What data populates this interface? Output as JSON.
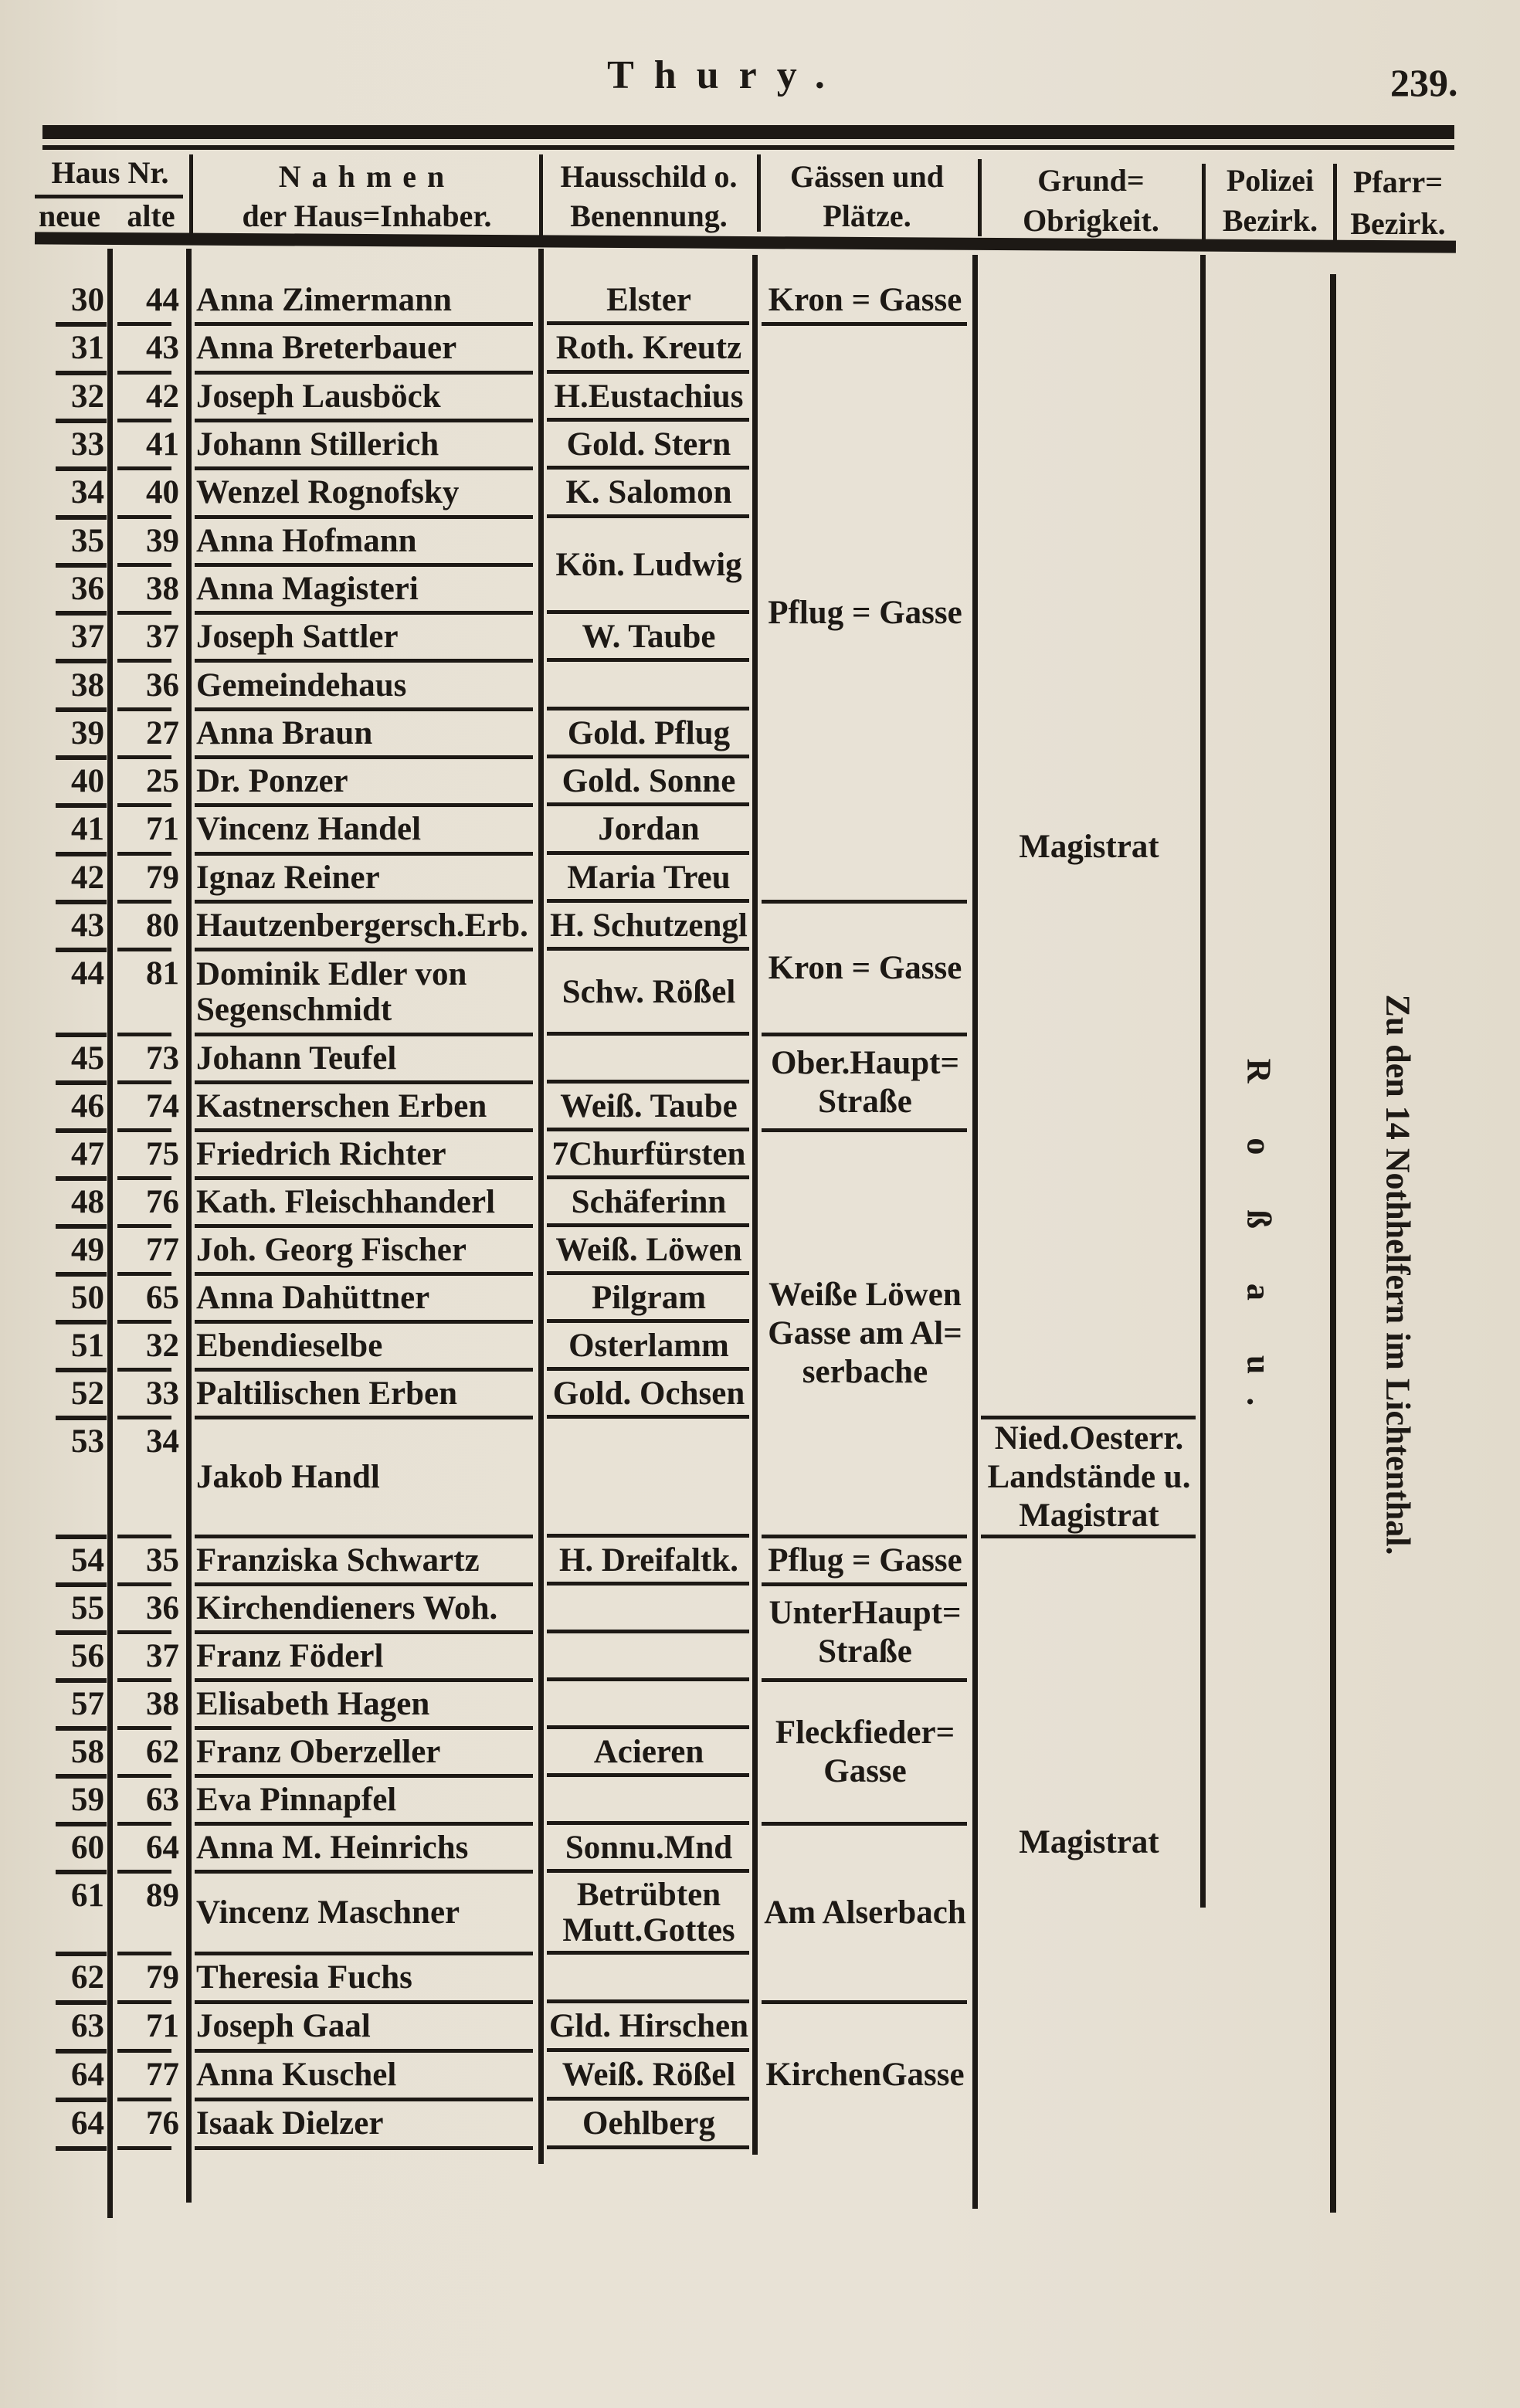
{
  "header": {
    "title": "Thury.",
    "page_number": "239."
  },
  "columns": {
    "haus_nr": "Haus Nr.",
    "neue": "neue",
    "alte": "alte",
    "nahmen": "Nahmen",
    "nahmen_sub": "der Haus=Inhaber.",
    "hausschild": "Hausschild o.",
    "hausschild_sub": "Benennung.",
    "gassen": "Gässen und",
    "gassen_sub": "Plätze.",
    "grund": "Grund=",
    "grund_sub": "Obrigkeit.",
    "polizei": "Polizei",
    "polizei_sub": "Bezirk.",
    "pfarr": "Pfarr=",
    "pfarr_sub": "Bezirk."
  },
  "rows": [
    {
      "neue": "30",
      "alte": "44",
      "name": "Anna Zimermann",
      "sign": "Elster"
    },
    {
      "neue": "31",
      "alte": "43",
      "name": "Anna Breterbauer",
      "sign": "Roth. Kreutz"
    },
    {
      "neue": "32",
      "alte": "42",
      "name": "Joseph Lausböck",
      "sign": "H.Eustachius"
    },
    {
      "neue": "33",
      "alte": "41",
      "name": "Johann Stillerich",
      "sign": "Gold. Stern"
    },
    {
      "neue": "34",
      "alte": "40",
      "name": "Wenzel Rognofsky",
      "sign": "K. Salomon"
    },
    {
      "neue": "35",
      "alte": "39",
      "name": "Anna Hofmann",
      "sign": "Kön. Ludwig"
    },
    {
      "neue": "36",
      "alte": "38",
      "name": "Anna Magisteri",
      "sign": ""
    },
    {
      "neue": "37",
      "alte": "37",
      "name": "Joseph Sattler",
      "sign": "W. Taube"
    },
    {
      "neue": "38",
      "alte": "36",
      "name": "Gemeindehaus",
      "sign": ""
    },
    {
      "neue": "39",
      "alte": "27",
      "name": "Anna Braun",
      "sign": "Gold. Pflug"
    },
    {
      "neue": "40",
      "alte": "25",
      "name": "Dr. Ponzer",
      "sign": "Gold. Sonne"
    },
    {
      "neue": "41",
      "alte": "71",
      "name": "Vincenz Handel",
      "sign": "Jordan"
    },
    {
      "neue": "42",
      "alte": "79",
      "name": "Ignaz Reiner",
      "sign": "Maria Treu"
    },
    {
      "neue": "43",
      "alte": "80",
      "name": "Hautzenbergersch.Erb.",
      "sign": "H. Schutzengl"
    },
    {
      "neue": "44",
      "alte": "81",
      "name": "Dominik Edler von\n    Segenschmidt",
      "sign": "Schw. Rößel"
    },
    {
      "neue": "45",
      "alte": "73",
      "name": "Johann Teufel",
      "sign": ""
    },
    {
      "neue": "46",
      "alte": "74",
      "name": "Kastnerschen Erben",
      "sign": "Weiß. Taube"
    },
    {
      "neue": "47",
      "alte": "75",
      "name": "Friedrich Richter",
      "sign": "7Churfürsten"
    },
    {
      "neue": "48",
      "alte": "76",
      "name": "Kath. Fleischhanderl",
      "sign": "Schäferinn"
    },
    {
      "neue": "49",
      "alte": "77",
      "name": "Joh. Georg Fischer",
      "sign": "Weiß. Löwen"
    },
    {
      "neue": "50",
      "alte": "65",
      "name": "Anna Dahüttner",
      "sign": "Pilgram"
    },
    {
      "neue": "51",
      "alte": "32",
      "name": "Ebendieselbe",
      "sign": "Osterlamm"
    },
    {
      "neue": "52",
      "alte": "33",
      "name": "Paltilischen Erben",
      "sign": "Gold. Ochsen"
    },
    {
      "neue": "53",
      "alte": "34",
      "name": "Jakob Handl",
      "sign": ""
    },
    {
      "neue": "54",
      "alte": "35",
      "name": "Franziska Schwartz",
      "sign": "H. Dreifaltk."
    },
    {
      "neue": "55",
      "alte": "36",
      "name": "Kirchendieners Woh.",
      "sign": ""
    },
    {
      "neue": "56",
      "alte": "37",
      "name": "Franz Föderl",
      "sign": ""
    },
    {
      "neue": "57",
      "alte": "38",
      "name": "Elisabeth Hagen",
      "sign": ""
    },
    {
      "neue": "58",
      "alte": "62",
      "name": "Franz Oberzeller",
      "sign": "Acieren"
    },
    {
      "neue": "59",
      "alte": "63",
      "name": "Eva Pinnapfel",
      "sign": ""
    },
    {
      "neue": "60",
      "alte": "64",
      "name": "Anna M. Heinrichs",
      "sign": "Sonnu.Mnd"
    },
    {
      "neue": "61",
      "alte": "89",
      "name": "Vincenz Maschner",
      "sign": "Betrübten\nMutt.Gottes"
    },
    {
      "neue": "62",
      "alte": "79",
      "name": "Theresia Fuchs",
      "sign": ""
    },
    {
      "neue": "63",
      "alte": "71",
      "name": "Joseph Gaal",
      "sign": "Gld. Hirschen"
    },
    {
      "neue": "64",
      "alte": "77",
      "name": "Anna Kuschel",
      "sign": "Weiß. Rößel"
    },
    {
      "neue": "64",
      "alte": "76",
      "name": "Isaak Dielzer",
      "sign": "Oehlberg"
    }
  ],
  "gassen": [
    {
      "label": "Kron = Gasse",
      "first_row": 0,
      "last_row": 0
    },
    {
      "label": "Pflug = Gasse",
      "first_row": 1,
      "last_row": 12
    },
    {
      "label": "Kron = Gasse",
      "first_row": 13,
      "last_row": 14
    },
    {
      "label": "Ober.Haupt=\nStraße",
      "first_row": 15,
      "last_row": 16
    },
    {
      "label": "Weiße Löwen\nGasse am Al=\nserbache",
      "first_row": 17,
      "last_row": 23
    },
    {
      "label": "Pflug = Gasse",
      "first_row": 24,
      "last_row": 24
    },
    {
      "label": "UnterHaupt=\nStraße",
      "first_row": 25,
      "last_row": 26
    },
    {
      "label": "Fleckfieder=\nGasse",
      "first_row": 27,
      "last_row": 29
    },
    {
      "label": "Am Alserbach",
      "first_row": 30,
      "last_row": 32
    },
    {
      "label": "KirchenGasse",
      "first_row": 33,
      "last_row": 35
    }
  ],
  "grundobrigkeit": [
    {
      "label": "Magistrat",
      "first_row": 0,
      "last_row": 22
    },
    {
      "label": "Nied.Oesterr.\nLandstände u.\nMagistrat",
      "first_row": 23,
      "last_row": 23
    },
    {
      "label": "Magistrat",
      "first_row": 24,
      "last_row": 35
    }
  ],
  "polizei_bezirk": "R o ß a u.",
  "pfarr_bezirk": "Zu den 14 Nothhelfern im Lichtenthal.",
  "colors": {
    "paper": "#e4ded0",
    "ink": "#1d1915"
  }
}
